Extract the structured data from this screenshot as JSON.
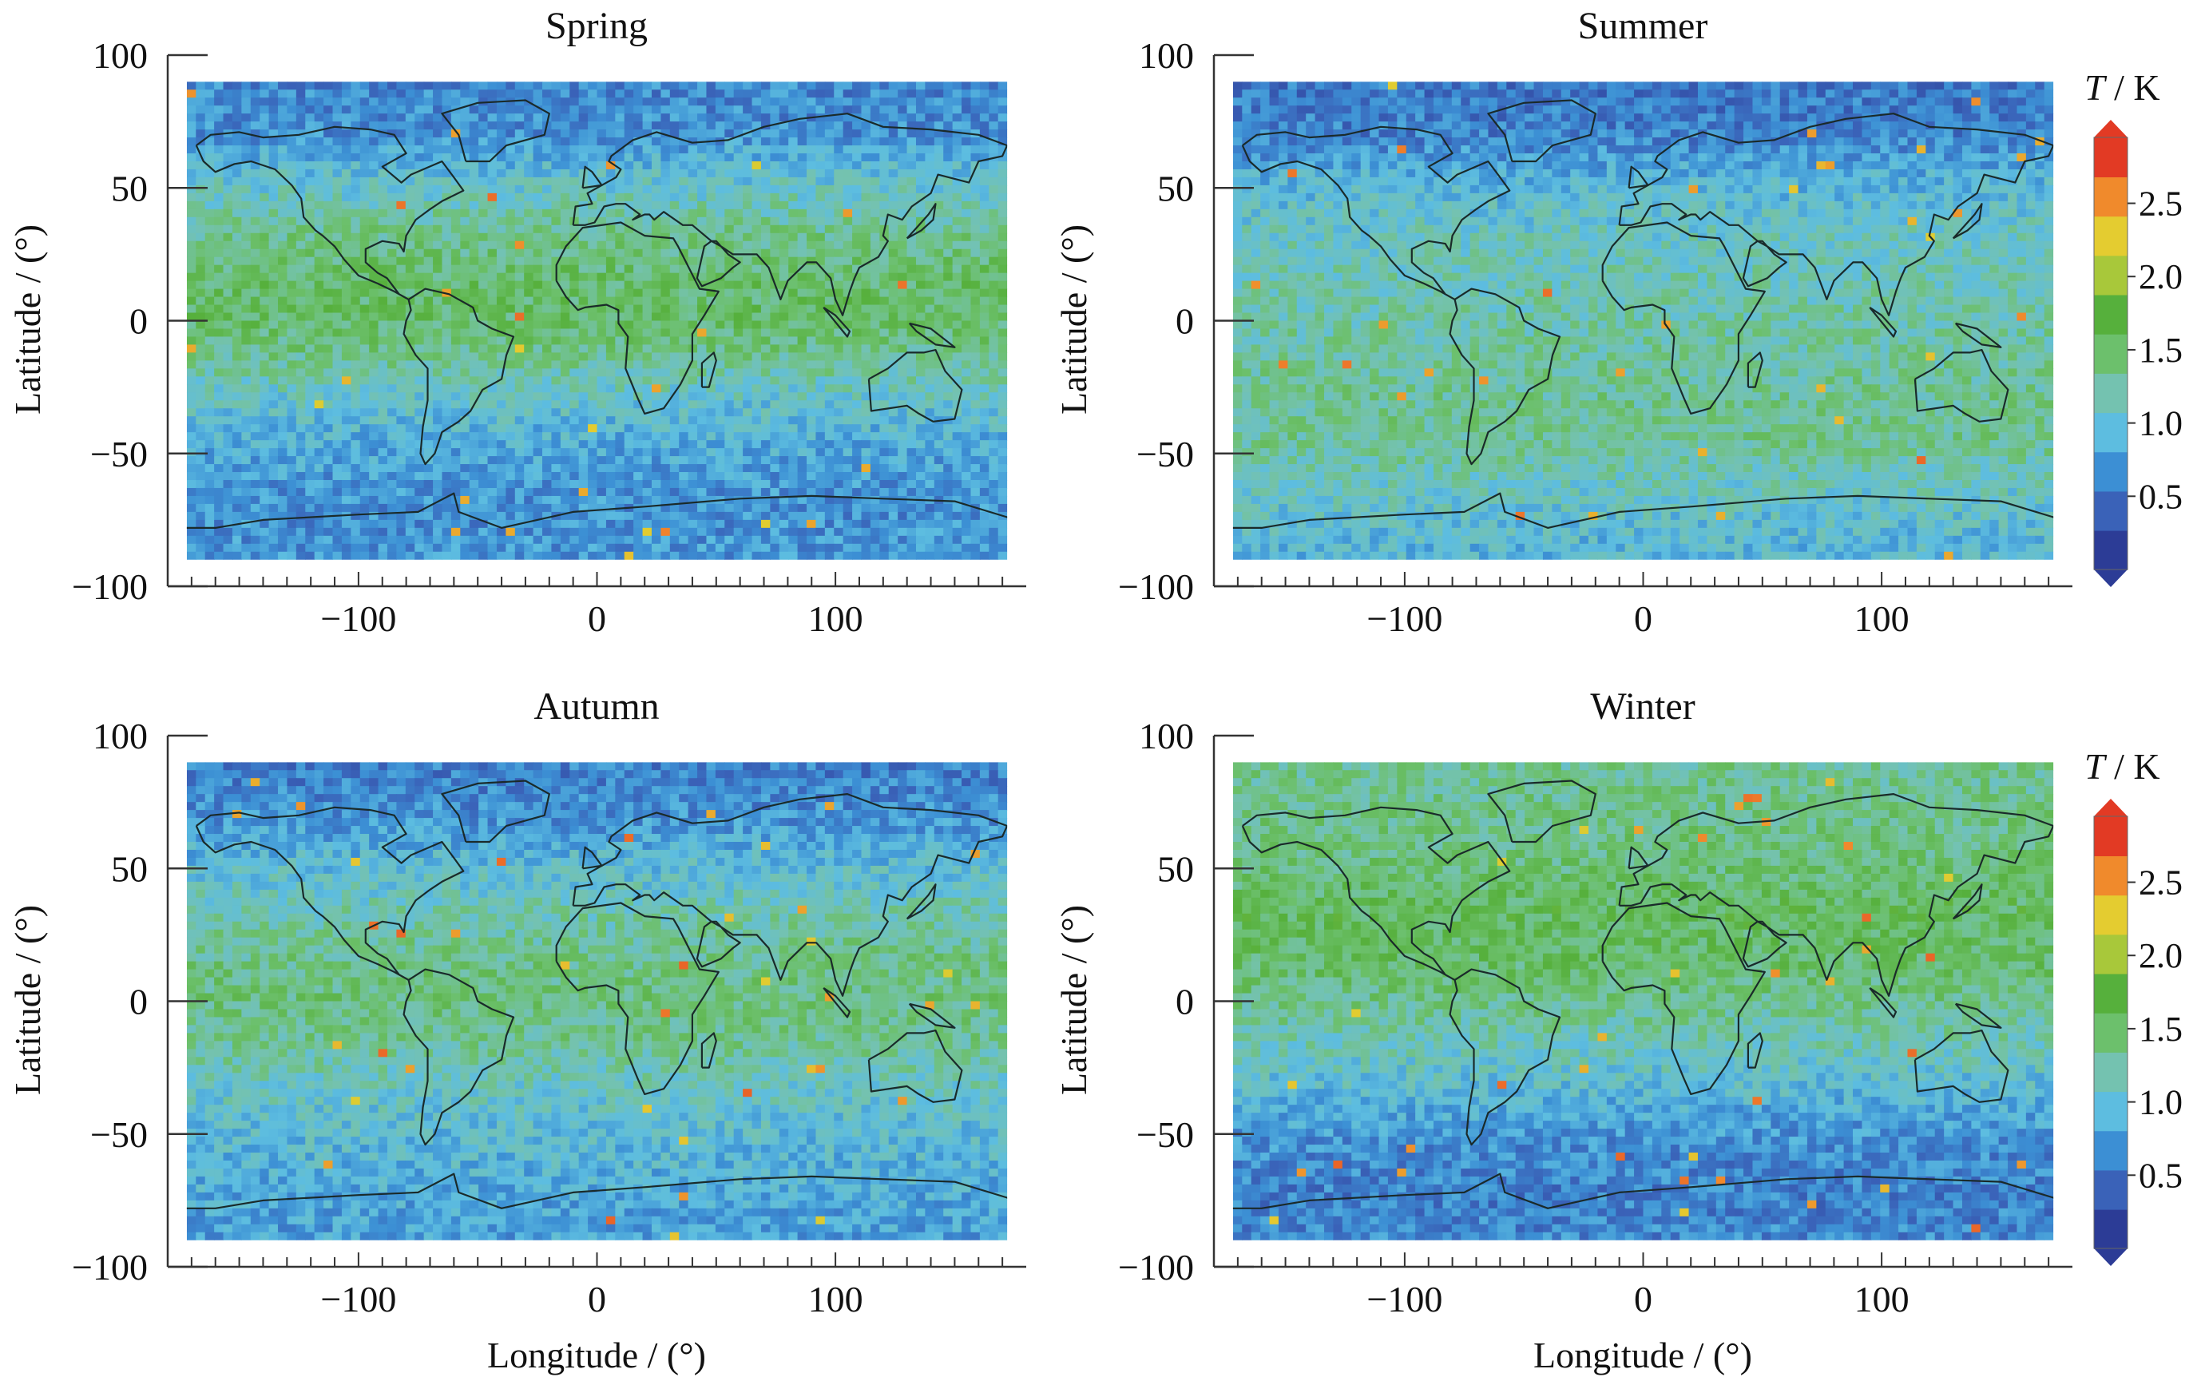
{
  "colorbar": {
    "title_var": "T",
    "title_unit": " / K",
    "tick_labels": [
      "0.5",
      "1.0",
      "1.5",
      "2.0",
      "2.5"
    ],
    "tick_values": [
      0.5,
      1.0,
      1.5,
      2.0,
      2.5
    ],
    "range": [
      0,
      2.95
    ],
    "colors": [
      "#2c3c96",
      "#3a62b8",
      "#3c8fd4",
      "#5dbde0",
      "#74c2b0",
      "#6cc06c",
      "#56b03c",
      "#a8c83a",
      "#e4cc30",
      "#f08a2c",
      "#e23a24"
    ]
  },
  "chart_data": [
    {
      "type": "heatmap",
      "title": "Spring",
      "xlabel": "",
      "ylabel": "Latitude / (°)",
      "xlim": [
        -180,
        180
      ],
      "ylim": [
        -100,
        100
      ],
      "x_tick_values": [
        -100,
        0,
        100
      ],
      "x_tick_labels": [
        "−100",
        "0",
        "100"
      ],
      "y_tick_values": [
        100,
        50,
        0,
        -50,
        -100
      ],
      "y_tick_labels": [
        "100",
        "50",
        "0",
        "−50",
        "−100"
      ],
      "data_extent_lat": [
        -90,
        90
      ],
      "colorbar": "T / K",
      "zonal_mean_T": [
        {
          "lat": 85,
          "value": 0.55
        },
        {
          "lat": 70,
          "value": 0.6
        },
        {
          "lat": 55,
          "value": 0.95
        },
        {
          "lat": 35,
          "value": 1.3
        },
        {
          "lat": 15,
          "value": 1.5
        },
        {
          "lat": 0,
          "value": 1.5
        },
        {
          "lat": -15,
          "value": 1.3
        },
        {
          "lat": -30,
          "value": 1.0
        },
        {
          "lat": -45,
          "value": 0.8
        },
        {
          "lat": -60,
          "value": 0.65
        },
        {
          "lat": -75,
          "value": 0.6
        },
        {
          "lat": -88,
          "value": 0.65
        }
      ]
    },
    {
      "type": "heatmap",
      "title": "Summer",
      "xlabel": "",
      "ylabel": "Latitude / (°)",
      "xlim": [
        -180,
        180
      ],
      "ylim": [
        -100,
        100
      ],
      "x_tick_values": [
        -100,
        0,
        100
      ],
      "x_tick_labels": [
        "−100",
        "0",
        "100"
      ],
      "y_tick_values": [
        100,
        50,
        0,
        -50,
        -100
      ],
      "y_tick_labels": [
        "100",
        "50",
        "0",
        "−50",
        "−100"
      ],
      "data_extent_lat": [
        -90,
        90
      ],
      "colorbar": "T / K",
      "zonal_mean_T": [
        {
          "lat": 85,
          "value": 0.45
        },
        {
          "lat": 70,
          "value": 0.5
        },
        {
          "lat": 55,
          "value": 0.8
        },
        {
          "lat": 35,
          "value": 1.05
        },
        {
          "lat": 15,
          "value": 1.15
        },
        {
          "lat": 0,
          "value": 1.2
        },
        {
          "lat": -15,
          "value": 1.25
        },
        {
          "lat": -30,
          "value": 1.3
        },
        {
          "lat": -45,
          "value": 1.3
        },
        {
          "lat": -60,
          "value": 1.1
        },
        {
          "lat": -75,
          "value": 0.95
        },
        {
          "lat": -88,
          "value": 0.85
        }
      ]
    },
    {
      "type": "heatmap",
      "title": "Autumn",
      "xlabel": "Longitude / (°)",
      "ylabel": "Latitude / (°)",
      "xlim": [
        -180,
        180
      ],
      "ylim": [
        -100,
        100
      ],
      "x_tick_values": [
        -100,
        0,
        100
      ],
      "x_tick_labels": [
        "−100",
        "0",
        "100"
      ],
      "y_tick_values": [
        100,
        50,
        0,
        -50,
        -100
      ],
      "y_tick_labels": [
        "100",
        "50",
        "0",
        "−50",
        "−100"
      ],
      "data_extent_lat": [
        -90,
        90
      ],
      "colorbar": "T / K",
      "zonal_mean_T": [
        {
          "lat": 85,
          "value": 0.5
        },
        {
          "lat": 70,
          "value": 0.6
        },
        {
          "lat": 55,
          "value": 0.85
        },
        {
          "lat": 35,
          "value": 1.15
        },
        {
          "lat": 15,
          "value": 1.35
        },
        {
          "lat": 0,
          "value": 1.4
        },
        {
          "lat": -15,
          "value": 1.3
        },
        {
          "lat": -30,
          "value": 1.1
        },
        {
          "lat": -45,
          "value": 0.95
        },
        {
          "lat": -60,
          "value": 0.85
        },
        {
          "lat": -75,
          "value": 0.75
        },
        {
          "lat": -88,
          "value": 0.7
        }
      ]
    },
    {
      "type": "heatmap",
      "title": "Winter",
      "xlabel": "Longitude / (°)",
      "ylabel": "Latitude / (°)",
      "xlim": [
        -180,
        180
      ],
      "ylim": [
        -100,
        100
      ],
      "x_tick_values": [
        -100,
        0,
        100
      ],
      "x_tick_labels": [
        "−100",
        "0",
        "100"
      ],
      "y_tick_values": [
        100,
        50,
        0,
        -50,
        -100
      ],
      "y_tick_labels": [
        "100",
        "50",
        "0",
        "−50",
        "−100"
      ],
      "data_extent_lat": [
        -90,
        90
      ],
      "colorbar": "T / K",
      "zonal_mean_T": [
        {
          "lat": 85,
          "value": 1.3
        },
        {
          "lat": 70,
          "value": 1.35
        },
        {
          "lat": 55,
          "value": 1.4
        },
        {
          "lat": 35,
          "value": 1.55
        },
        {
          "lat": 15,
          "value": 1.5
        },
        {
          "lat": 0,
          "value": 1.35
        },
        {
          "lat": -15,
          "value": 1.15
        },
        {
          "lat": -30,
          "value": 0.95
        },
        {
          "lat": -45,
          "value": 0.7
        },
        {
          "lat": -60,
          "value": 0.55
        },
        {
          "lat": -75,
          "value": 0.5
        },
        {
          "lat": -88,
          "value": 0.55
        }
      ]
    }
  ]
}
